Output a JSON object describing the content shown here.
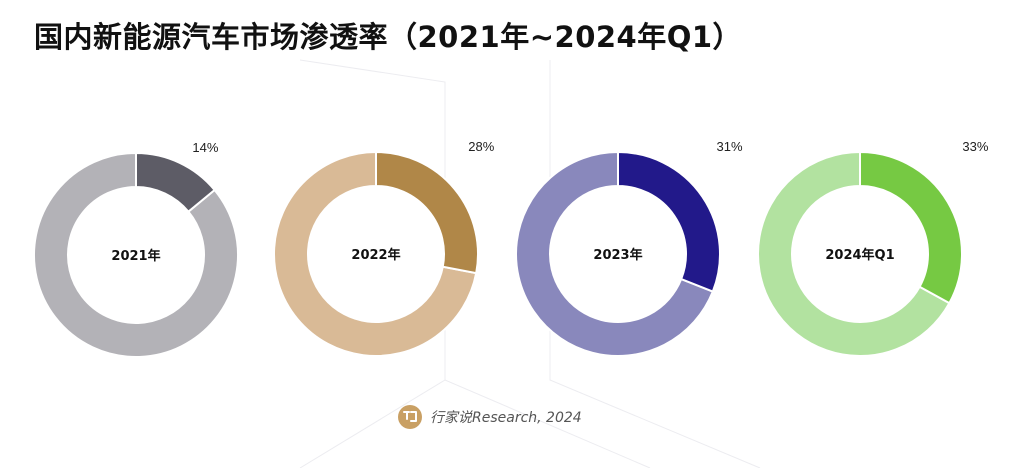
{
  "page": {
    "title": "国内新能源汽车市场渗透率（2021年~2024年Q1）"
  },
  "chart_data": {
    "type": "pie",
    "title": "国内新能源汽车市场渗透率（2021年~2024年Q1）",
    "charts": [
      {
        "label": "2021年",
        "value": 14,
        "value_label": "14%",
        "color": "#5d5c66",
        "rest_color": "#b3b2b7"
      },
      {
        "label": "2022年",
        "value": 28,
        "value_label": "28%",
        "color": "#b08748",
        "rest_color": "#d9ba96"
      },
      {
        "label": "2023年",
        "value": 31,
        "value_label": "31%",
        "color": "#22198a",
        "rest_color": "#8988bc"
      },
      {
        "label": "2024年Q1",
        "value": 33,
        "value_label": "33%",
        "color": "#76c943",
        "rest_color": "#b2e2a0"
      }
    ]
  },
  "source": {
    "text": "行家说Research, 2024",
    "logo_icon": "speech-bubble-logo-icon",
    "logo_color": "#c9a064"
  }
}
